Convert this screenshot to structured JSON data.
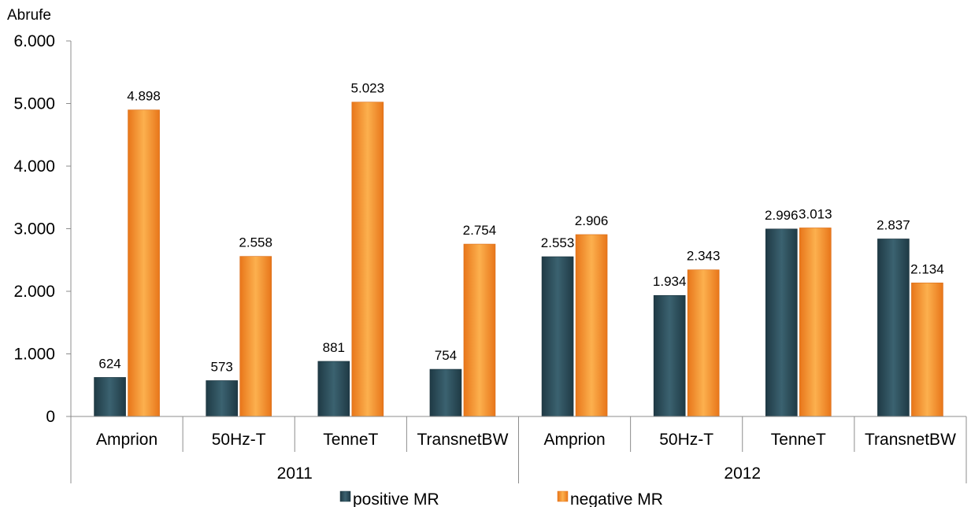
{
  "chart_data": {
    "type": "bar",
    "ylabel": "Abrufe",
    "ylim": [
      0,
      6000
    ],
    "yticks": [
      0,
      1000,
      2000,
      3000,
      4000,
      5000,
      6000
    ],
    "ytick_labels": [
      "0",
      "1.000",
      "2.000",
      "3.000",
      "4.000",
      "5.000",
      "6.000"
    ],
    "grid": false,
    "legend_position": "bottom",
    "groups": [
      {
        "label": "2011",
        "categories": [
          "Amprion",
          "50Hz-T",
          "TenneT",
          "TransnetBW"
        ]
      },
      {
        "label": "2012",
        "categories": [
          "Amprion",
          "50Hz-T",
          "TenneT",
          "TransnetBW"
        ]
      }
    ],
    "categories": [
      "Amprion",
      "50Hz-T",
      "TenneT",
      "TransnetBW",
      "Amprion",
      "50Hz-T",
      "TenneT",
      "TransnetBW"
    ],
    "series": [
      {
        "name": "positive MR",
        "color": "#2a4a57",
        "values": [
          624,
          573,
          881,
          754,
          2553,
          1934,
          2996,
          2837
        ],
        "labels": [
          "624",
          "573",
          "881",
          "754",
          "2.553",
          "1.934",
          "2.996",
          "2.837"
        ]
      },
      {
        "name": "negative MR",
        "color": "#f7931e",
        "values": [
          4898,
          2558,
          5023,
          2754,
          2906,
          2343,
          3013,
          2134
        ],
        "labels": [
          "4.898",
          "2.558",
          "5.023",
          "2.754",
          "2.906",
          "2.343",
          "3.013",
          "2.134"
        ]
      }
    ]
  }
}
